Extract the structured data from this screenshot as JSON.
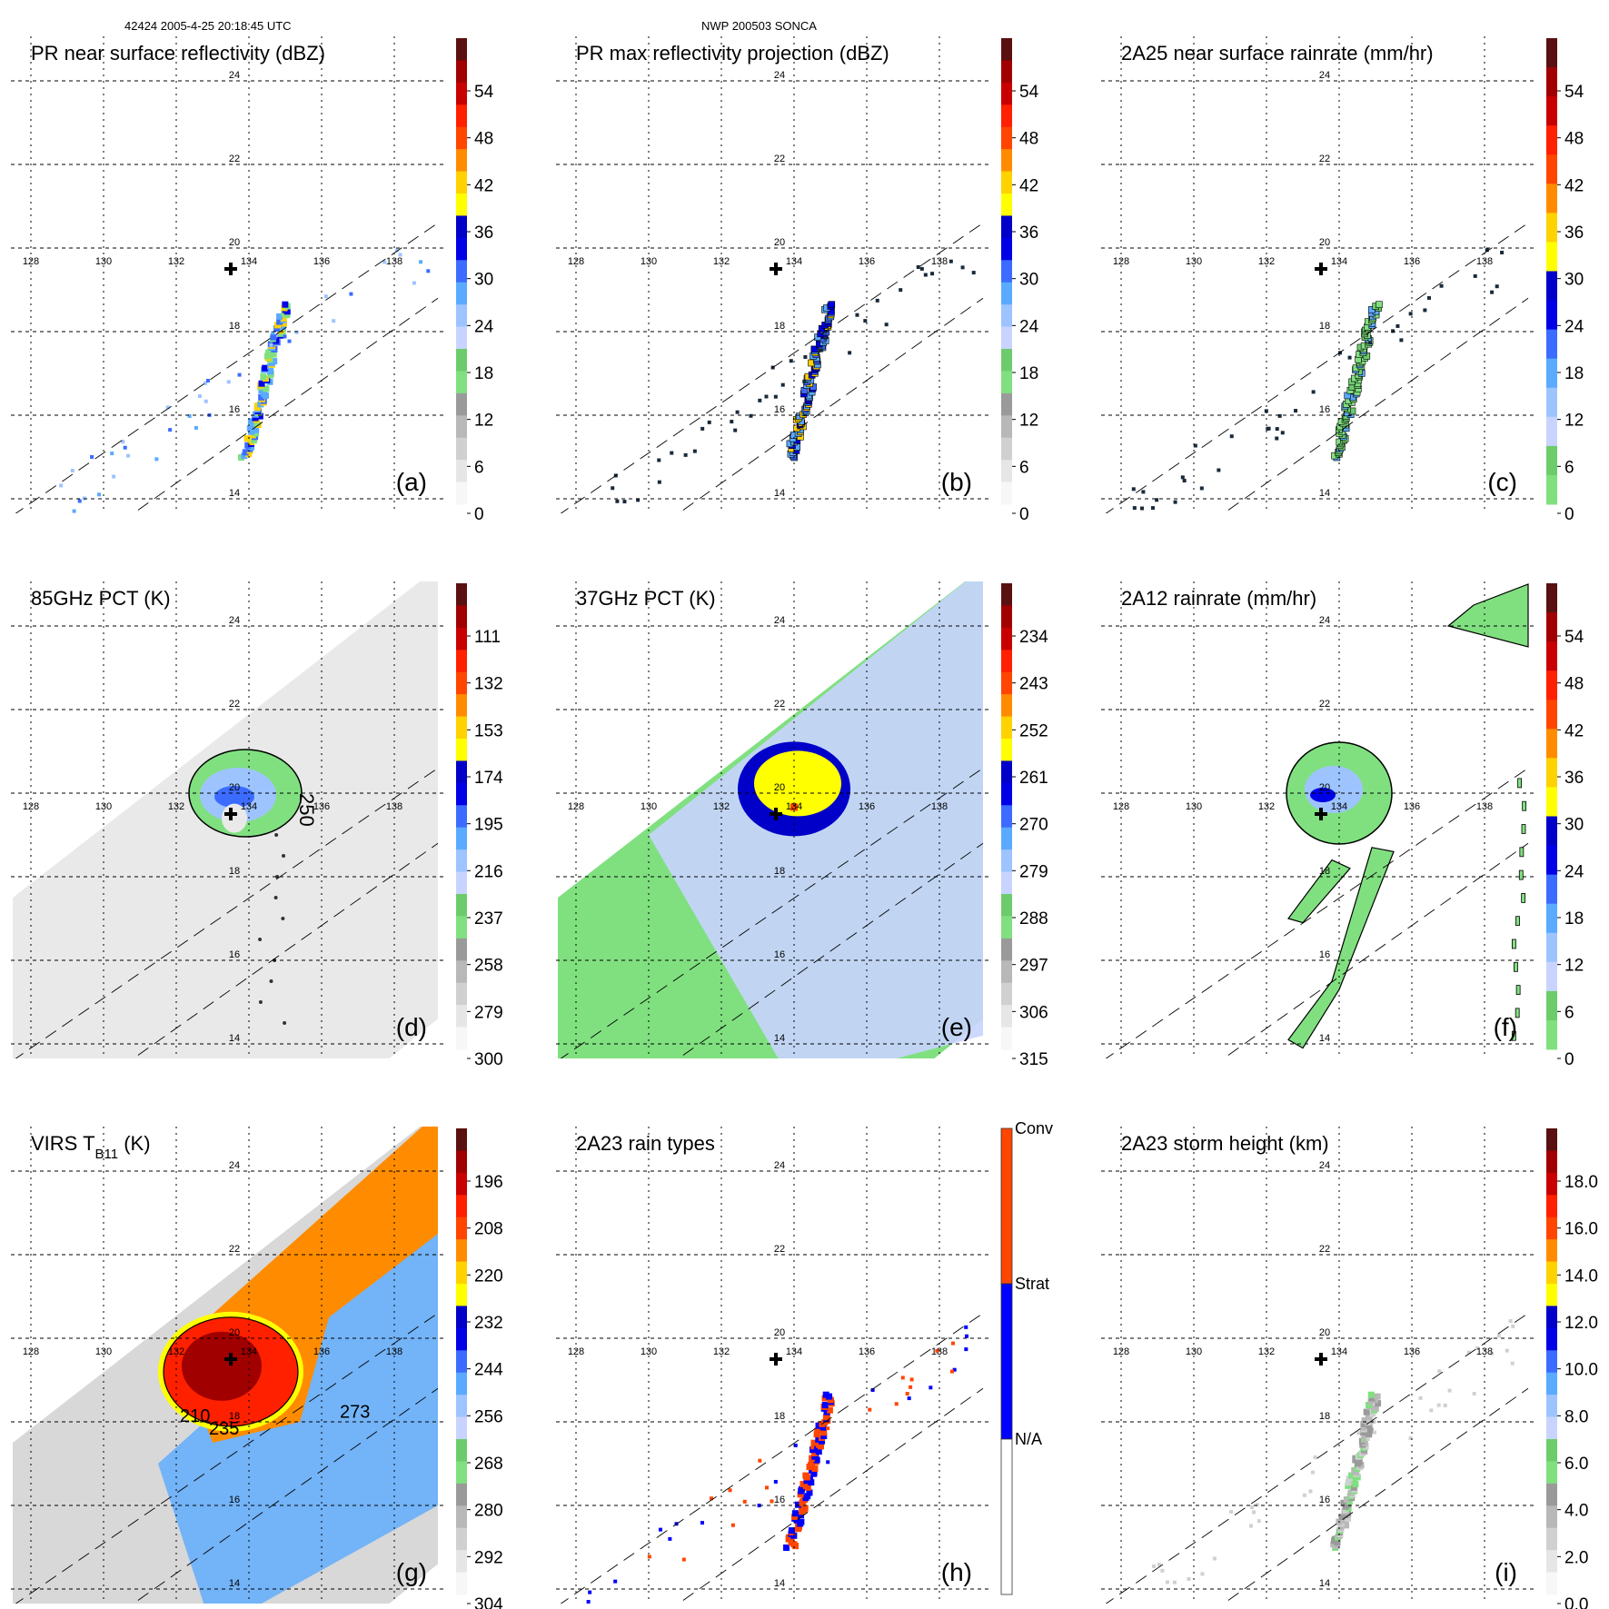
{
  "header": {
    "left_caption": "42424 2005-4-25 20:18:45 UTC",
    "center_caption": "NWP 200503 SONCA"
  },
  "axes": {
    "lon_ticks": [
      128,
      130,
      132,
      134,
      136,
      138
    ],
    "lat_ticks": [
      14,
      16,
      18,
      20,
      22,
      24
    ],
    "storm_center": {
      "lon": 133.5,
      "lat": 19.5,
      "marker": "plus-marker"
    }
  },
  "palettes": {
    "standard": [
      "#f7f7f7",
      "#e6e6e6",
      "#d0d0d0",
      "#b8b8b8",
      "#9a9a9a",
      "#80e080",
      "#6ccc6c",
      "#c8d4ff",
      "#9ec4ff",
      "#5aaaff",
      "#3c6cff",
      "#0000e6",
      "#0000c8",
      "#ffff00",
      "#ffd200",
      "#ff8c00",
      "#ff4500",
      "#ff2000",
      "#c80000",
      "#a00000",
      "#5a1010"
    ],
    "rain": [
      "#80e080",
      "#6ccc6c",
      "#c8d4ff",
      "#9ec4ff",
      "#5aaaff",
      "#3c6cff",
      "#0000e6",
      "#0000c8",
      "#ffff00",
      "#ffd200",
      "#ff8c00",
      "#ff4500",
      "#ff2000",
      "#c80000",
      "#a00000",
      "#5a1010"
    ]
  },
  "chart_data": [
    {
      "id": "a",
      "type": "heatmap",
      "letter": "(a)",
      "title": "PR near surface reflectivity (dBZ)",
      "palette": "standard",
      "colorbar": {
        "ticks": [
          "54",
          "48",
          "42",
          "36",
          "30",
          "24",
          "18",
          "12",
          "6",
          "0"
        ],
        "range": [
          0,
          60
        ]
      },
      "swath": "pr",
      "field": "pr_line",
      "contour_labels": []
    },
    {
      "id": "b",
      "type": "heatmap",
      "letter": "(b)",
      "title": "PR max reflectivity projection (dBZ)",
      "palette": "standard",
      "colorbar": {
        "ticks": [
          "54",
          "48",
          "42",
          "36",
          "30",
          "24",
          "18",
          "12",
          "6",
          "0"
        ],
        "range": [
          0,
          60
        ]
      },
      "swath": "pr",
      "field": "pr_line_contoured",
      "contour_labels": []
    },
    {
      "id": "c",
      "type": "heatmap",
      "letter": "(c)",
      "title": "2A25 near surface rainrate (mm/hr)",
      "palette": "rain",
      "colorbar": {
        "ticks": [
          "54",
          "48",
          "42",
          "36",
          "30",
          "24",
          "18",
          "12",
          "6",
          "0"
        ],
        "range": [
          0,
          60
        ]
      },
      "swath": "pr",
      "field": "pr_line_rain",
      "contour_labels": []
    },
    {
      "id": "d",
      "type": "heatmap",
      "letter": "(d)",
      "title": "85GHz PCT (K)",
      "palette": "standard_reversed",
      "colorbar": {
        "ticks": [
          "111",
          "132",
          "153",
          "174",
          "195",
          "216",
          "237",
          "258",
          "279",
          "300"
        ],
        "range": [
          90,
          300
        ]
      },
      "swath": "tmi",
      "field": "pct85",
      "contour_labels": [
        "250"
      ]
    },
    {
      "id": "e",
      "type": "heatmap",
      "letter": "(e)",
      "title": "37GHz PCT (K)",
      "palette": "standard_reversed",
      "colorbar": {
        "ticks": [
          "234",
          "243",
          "252",
          "261",
          "270",
          "279",
          "288",
          "297",
          "306",
          "315"
        ],
        "range": [
          225,
          315
        ]
      },
      "swath": "tmi",
      "field": "pct37",
      "contour_labels": []
    },
    {
      "id": "f",
      "type": "heatmap",
      "letter": "(f)",
      "title": "2A12 rainrate (mm/hr)",
      "palette": "rain",
      "colorbar": {
        "ticks": [
          "54",
          "48",
          "42",
          "36",
          "30",
          "24",
          "18",
          "12",
          "6",
          "0"
        ],
        "range": [
          0,
          60
        ]
      },
      "swath": "tmi",
      "field": "tmi_rain",
      "contour_labels": []
    },
    {
      "id": "g",
      "type": "heatmap",
      "letter": "(g)",
      "title": "VIRS T",
      "title_sub": "B11",
      "title_suffix": " (K)",
      "palette": "standard_reversed",
      "colorbar": {
        "ticks": [
          "196",
          "208",
          "220",
          "232",
          "244",
          "256",
          "268",
          "280",
          "292",
          "304"
        ],
        "range": [
          184,
          304
        ]
      },
      "swath": "virs",
      "field": "virs",
      "contour_labels": [
        "210",
        "235",
        "273"
      ]
    },
    {
      "id": "h",
      "type": "heatmap",
      "letter": "(h)",
      "title": "2A23 rain types",
      "palette": "raintype",
      "colorbar": {
        "ticks": [
          "Conv",
          "Strat",
          "N/A"
        ],
        "categories": [
          {
            "name": "Conv",
            "color": "#ff4500"
          },
          {
            "name": "Strat",
            "color": "#0000ff"
          },
          {
            "name": "N/A",
            "color": "#ffffff"
          }
        ]
      },
      "swath": "pr",
      "field": "raintype",
      "contour_labels": []
    },
    {
      "id": "i",
      "type": "heatmap",
      "letter": "(i)",
      "title": "2A23 storm height (km)",
      "palette": "standard",
      "colorbar": {
        "ticks": [
          "18.0",
          "16.0",
          "14.0",
          "12.0",
          "10.0",
          "8.0",
          "6.0",
          "4.0",
          "2.0",
          "0.0"
        ],
        "range": [
          0,
          20
        ]
      },
      "swath": "pr",
      "field": "height",
      "contour_labels": []
    }
  ]
}
